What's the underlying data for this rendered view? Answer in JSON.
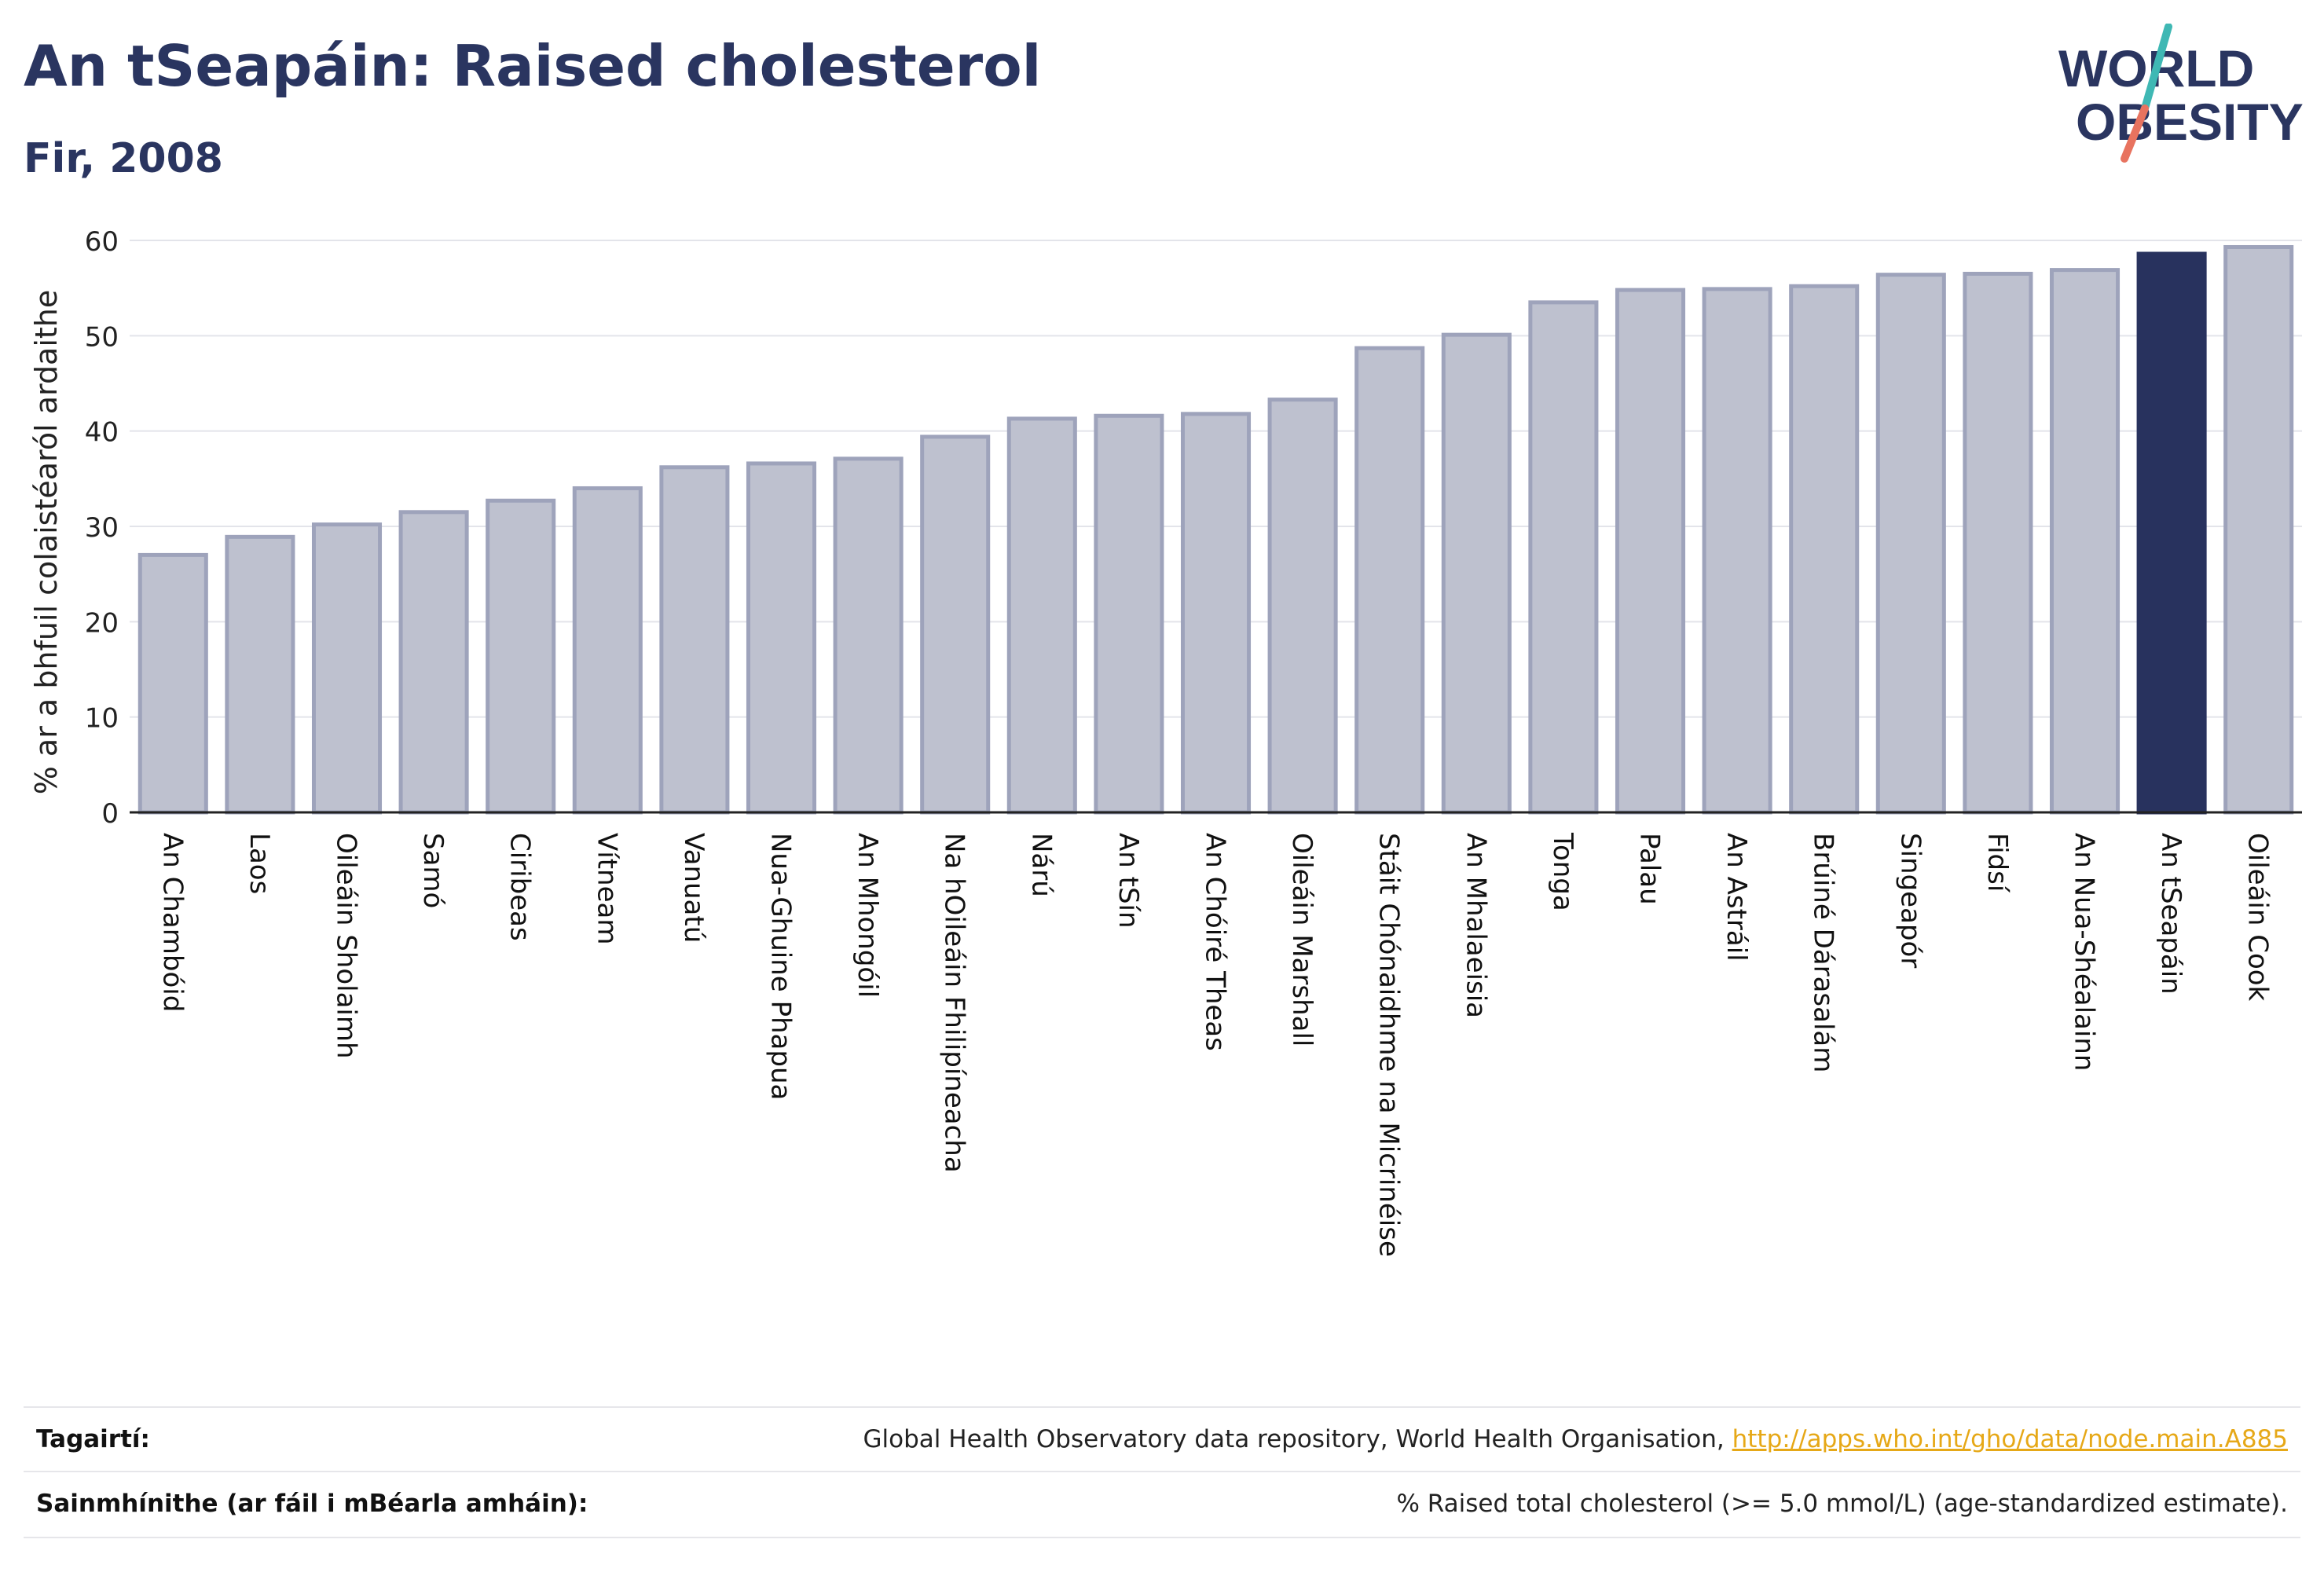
{
  "header": {
    "title": "An tSeapáin: Raised cholesterol",
    "subtitle": "Fir, 2008"
  },
  "logo": {
    "line1": "WORLD",
    "line2": "OBESITY"
  },
  "colors": {
    "highlight": "#28325e",
    "bar": "#bec1cf",
    "bar_border": "#9ea3bb",
    "text": "#2a3560",
    "logo_teal": "#3fb8b4",
    "logo_coral": "#e8735f",
    "link": "#e6a817"
  },
  "chart_data": {
    "type": "bar",
    "ylabel": "% ar a bhfuil colaistéaról ardaithe",
    "ylim": [
      0,
      60
    ],
    "yticks": [
      0,
      10,
      20,
      30,
      40,
      50,
      60
    ],
    "grid": true,
    "highlight": "An tSeapáin",
    "categories": [
      "An Chambóid",
      "Laos",
      "Oileáin Sholaimh",
      "Samó",
      "Ciribeas",
      "Vítneam",
      "Vanuatú",
      "Nua-Ghuine Phapua",
      "An Mhongóil",
      "Na hOileáin Fhilipíneacha",
      "Nárú",
      "An tSín",
      "An Chóiré Theas",
      "Oileáin Marshall",
      "Stáit Chónaidhme na Micrinéise",
      "An Mhalaeisia",
      "Tonga",
      "Palau",
      "An Astráil",
      "Brúiné Dárasalám",
      "Singeapór",
      "Fidsí",
      "An Nua-Shéalainn",
      "An tSeapáin",
      "Oileáin Cook"
    ],
    "values": [
      27.0,
      28.9,
      30.2,
      31.5,
      32.7,
      34.0,
      36.2,
      36.6,
      37.1,
      39.4,
      41.3,
      41.6,
      41.8,
      43.3,
      48.7,
      50.1,
      53.5,
      54.8,
      54.9,
      55.2,
      56.4,
      56.5,
      56.9,
      58.6,
      59.3
    ]
  },
  "footer": {
    "references_label": "Tagairtí:",
    "references_text": "Global Health Observatory data repository, World Health Organisation, ",
    "references_link": "http://apps.who.int/gho/data/node.main.A885",
    "definitions_label": "Sainmhínithe (ar fáil i mBéarla amháin):",
    "definitions_text": "% Raised total cholesterol (>= 5.0 mmol/L) (age-standardized estimate)."
  }
}
